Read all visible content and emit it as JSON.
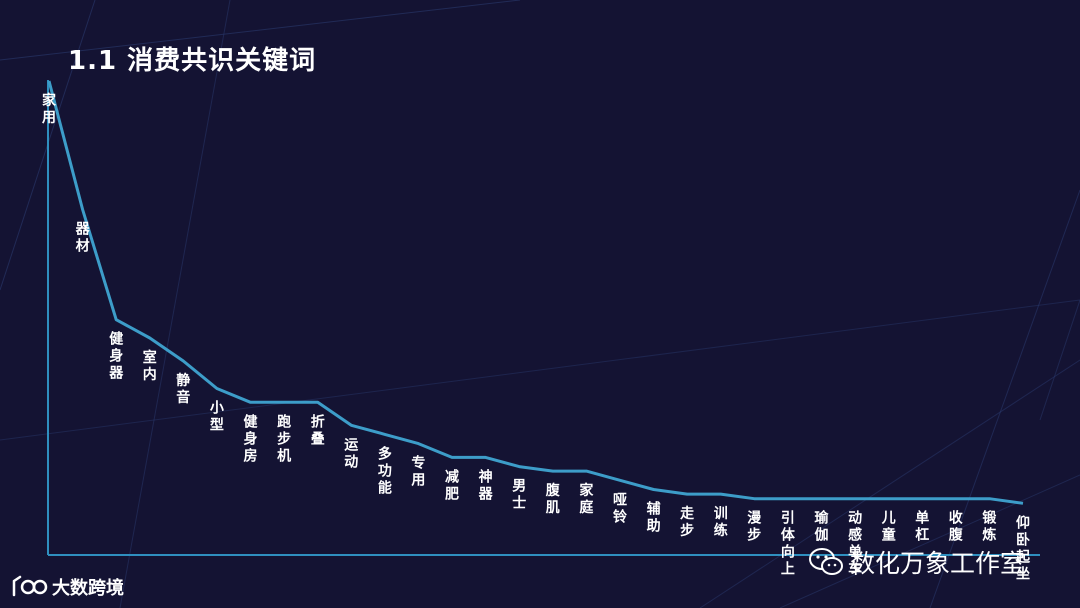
{
  "title": "1.1 消费共识关键词",
  "watermark": "数化万象工作室",
  "brand": "大数跨境",
  "colors": {
    "background": "#141333",
    "line": "#3d9dc9",
    "axis": "#2f8fbf",
    "text": "#ffffff"
  },
  "icons": {
    "watermark": "wechat-icon",
    "brand": "brand-logo-icon"
  },
  "chart_data": {
    "type": "line",
    "title": "1.1 消费共识关键词",
    "xlabel": "",
    "ylabel": "",
    "grid": false,
    "legend": "none",
    "ylim": [
      0,
      100
    ],
    "categories": [
      "家用",
      "器材",
      "健身器",
      "室内",
      "静音",
      "小型",
      "健身房",
      "跑步机",
      "折叠",
      "运动",
      "多功能",
      "专用",
      "减肥",
      "神器",
      "男士",
      "腹肌",
      "家庭",
      "哑铃",
      "辅助",
      "走步",
      "训练",
      "漫步",
      "引体向上",
      "瑜伽",
      "动感单车",
      "儿童",
      "单杠",
      "收腹",
      "锻炼",
      "仰卧起坐"
    ],
    "values": [
      100,
      72,
      48,
      44,
      39,
      33,
      30,
      30,
      30,
      25,
      23,
      21,
      18,
      18,
      16,
      15,
      15,
      13,
      11,
      10,
      10,
      9,
      9,
      9,
      9,
      9,
      9,
      9,
      9,
      8
    ],
    "series": [
      {
        "values": [
          100,
          72,
          48,
          44,
          39,
          33,
          30,
          30,
          30,
          25,
          23,
          21,
          18,
          18,
          16,
          15,
          15,
          13,
          11,
          10,
          10,
          9,
          9,
          9,
          9,
          9,
          9,
          9,
          9,
          8
        ]
      }
    ]
  }
}
